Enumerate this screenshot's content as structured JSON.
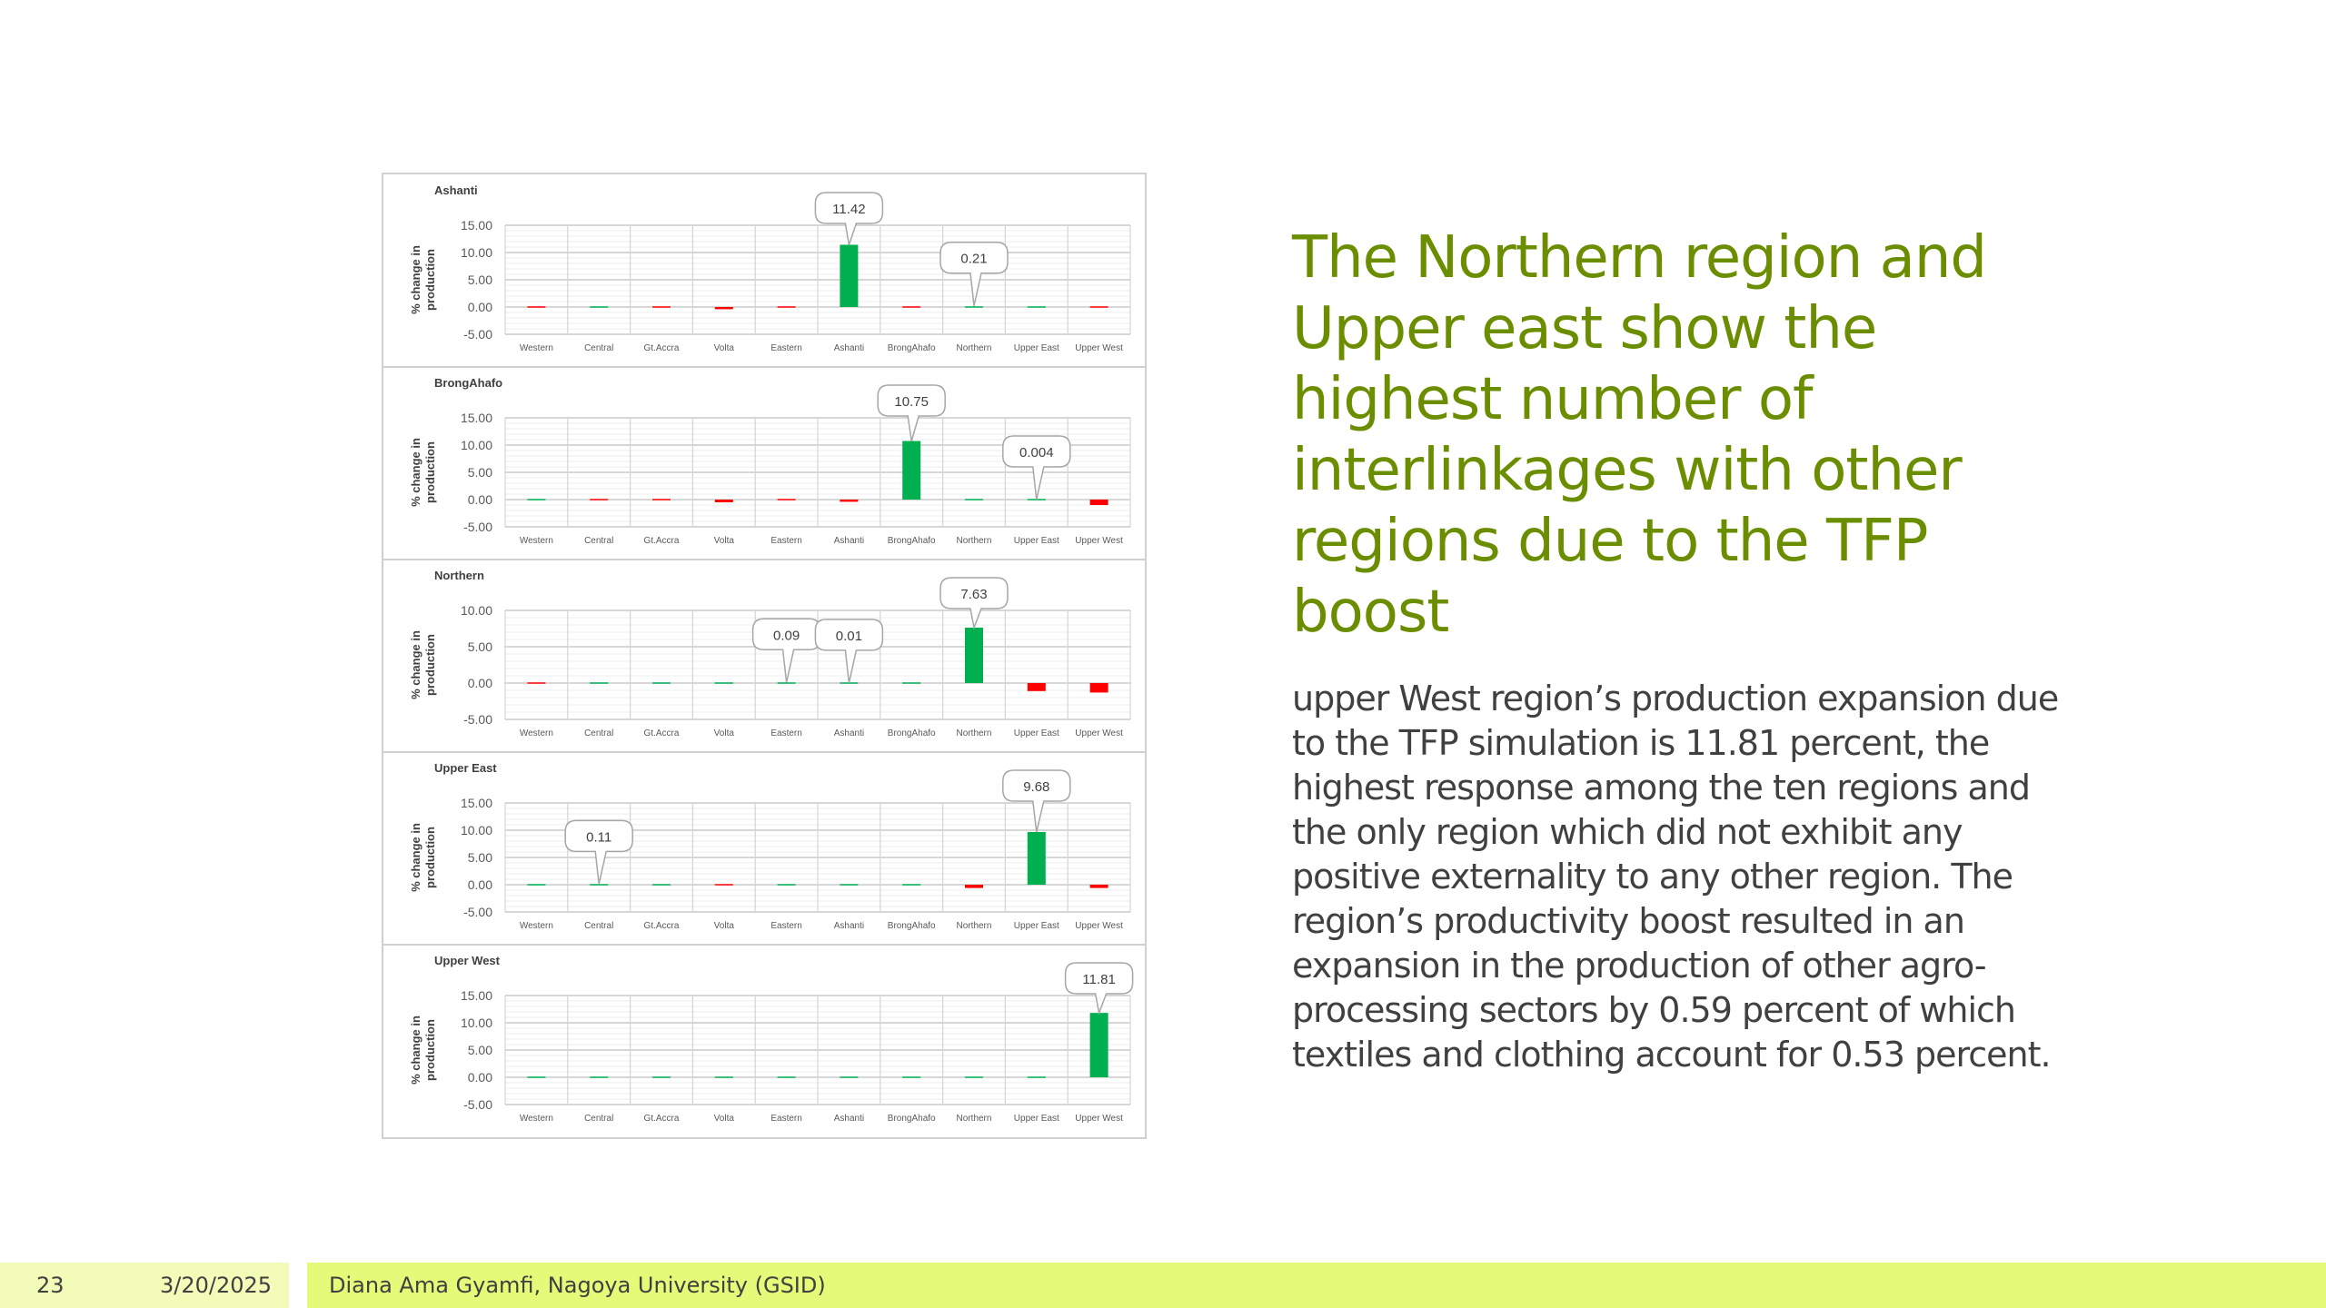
{
  "slide": {
    "title": "The Northern region and Upper east show the highest number of interlinkages with other regions due to the TFP boost",
    "body": "upper West region’s production expansion due to the TFP simulation is 11.81 percent, the highest response among the ten regions and the only region which did not exhibit any positive externality to any other region. The region’s productivity boost resulted in an expansion in the production of other agro-processing sectors by 0.59 percent of which textiles and clothing account for 0.53 percent."
  },
  "footer": {
    "page_number": "23",
    "date": "3/20/2025",
    "author": "Diana Ama Gyamfi, Nagoya University (GSID)"
  },
  "colors": {
    "positive": "#00b050",
    "negative": "#ff0000",
    "title": "#6b8e00",
    "footer_light": "#f3fbb8",
    "footer_accent": "#e6fa7a"
  },
  "chart_data": [
    {
      "type": "bar",
      "title": "Ashanti",
      "ylabel": "% change in production",
      "ylim": [
        -5,
        15
      ],
      "yticks": [
        "15.00",
        "10.00",
        "5.00",
        "0.00",
        "-5.00"
      ],
      "ytick_values": [
        15,
        10,
        5,
        0,
        -5
      ],
      "categories": [
        "Western",
        "Central",
        "Gt.Accra",
        "Volta",
        "Eastern",
        "Ashanti",
        "BrongAhafo",
        "Northern",
        "Upper East",
        "Upper West"
      ],
      "values": [
        -0.1,
        0,
        -0.1,
        -0.4,
        -0.1,
        11.42,
        -0.1,
        0.21,
        0,
        -0.2
      ],
      "callouts": [
        {
          "index": 5,
          "text": "11.42"
        },
        {
          "index": 7,
          "text": "0.21"
        }
      ]
    },
    {
      "type": "bar",
      "title": "BrongAhafo",
      "ylabel": "% change in production",
      "ylim": [
        -5,
        15
      ],
      "yticks": [
        "15.00",
        "10.00",
        "5.00",
        "0.00",
        "-5.00"
      ],
      "ytick_values": [
        15,
        10,
        5,
        0,
        -5
      ],
      "categories": [
        "Western",
        "Central",
        "Gt.Accra",
        "Volta",
        "Eastern",
        "Ashanti",
        "BrongAhafo",
        "Northern",
        "Upper East",
        "Upper West"
      ],
      "values": [
        0,
        -0.1,
        -0.1,
        -0.5,
        -0.1,
        -0.4,
        10.75,
        0,
        0.004,
        -1.0
      ],
      "callouts": [
        {
          "index": 6,
          "text": "10.75"
        },
        {
          "index": 8,
          "text": "0.004"
        }
      ]
    },
    {
      "type": "bar",
      "title": "Northern",
      "ylabel": "% change in production",
      "ylim": [
        -5,
        10
      ],
      "yticks": [
        "10.00",
        "5.00",
        "0.00",
        "-5.00"
      ],
      "ytick_values": [
        10,
        5,
        0,
        -5
      ],
      "categories": [
        "Western",
        "Central",
        "Gt.Accra",
        "Volta",
        "Eastern",
        "Ashanti",
        "BrongAhafo",
        "Northern",
        "Upper East",
        "Upper West"
      ],
      "values": [
        -0.1,
        0,
        0,
        0,
        0.09,
        0.01,
        0,
        7.63,
        -1.1,
        -1.3
      ],
      "callouts": [
        {
          "index": 4,
          "text": "0.09"
        },
        {
          "index": 5,
          "text": "0.01"
        },
        {
          "index": 7,
          "text": "7.63"
        }
      ]
    },
    {
      "type": "bar",
      "title": "Upper East",
      "ylabel": "% change in production",
      "ylim": [
        -5,
        15
      ],
      "yticks": [
        "15.00",
        "10.00",
        "5.00",
        "0.00",
        "-5.00"
      ],
      "ytick_values": [
        15,
        10,
        5,
        0,
        -5
      ],
      "categories": [
        "Western",
        "Central",
        "Gt.Accra",
        "Volta",
        "Eastern",
        "Ashanti",
        "BrongAhafo",
        "Northern",
        "Upper East",
        "Upper West"
      ],
      "values": [
        0,
        0.11,
        0,
        -0.1,
        0,
        0,
        0,
        -0.6,
        9.68,
        -0.6
      ],
      "callouts": [
        {
          "index": 1,
          "text": "0.11"
        },
        {
          "index": 8,
          "text": "9.68"
        }
      ]
    },
    {
      "type": "bar",
      "title": "Upper West",
      "ylabel": "% change in production",
      "ylim": [
        -5,
        15
      ],
      "yticks": [
        "15.00",
        "10.00",
        "5.00",
        "0.00",
        "-5.00"
      ],
      "ytick_values": [
        15,
        10,
        5,
        0,
        -5
      ],
      "categories": [
        "Western",
        "Central",
        "Gt.Accra",
        "Volta",
        "Eastern",
        "Ashanti",
        "BrongAhafo",
        "Northern",
        "Upper East",
        "Upper West"
      ],
      "values": [
        0,
        0,
        0,
        0,
        0,
        0,
        0,
        0,
        0,
        11.81
      ],
      "callouts": [
        {
          "index": 9,
          "text": "11.81"
        }
      ]
    }
  ]
}
